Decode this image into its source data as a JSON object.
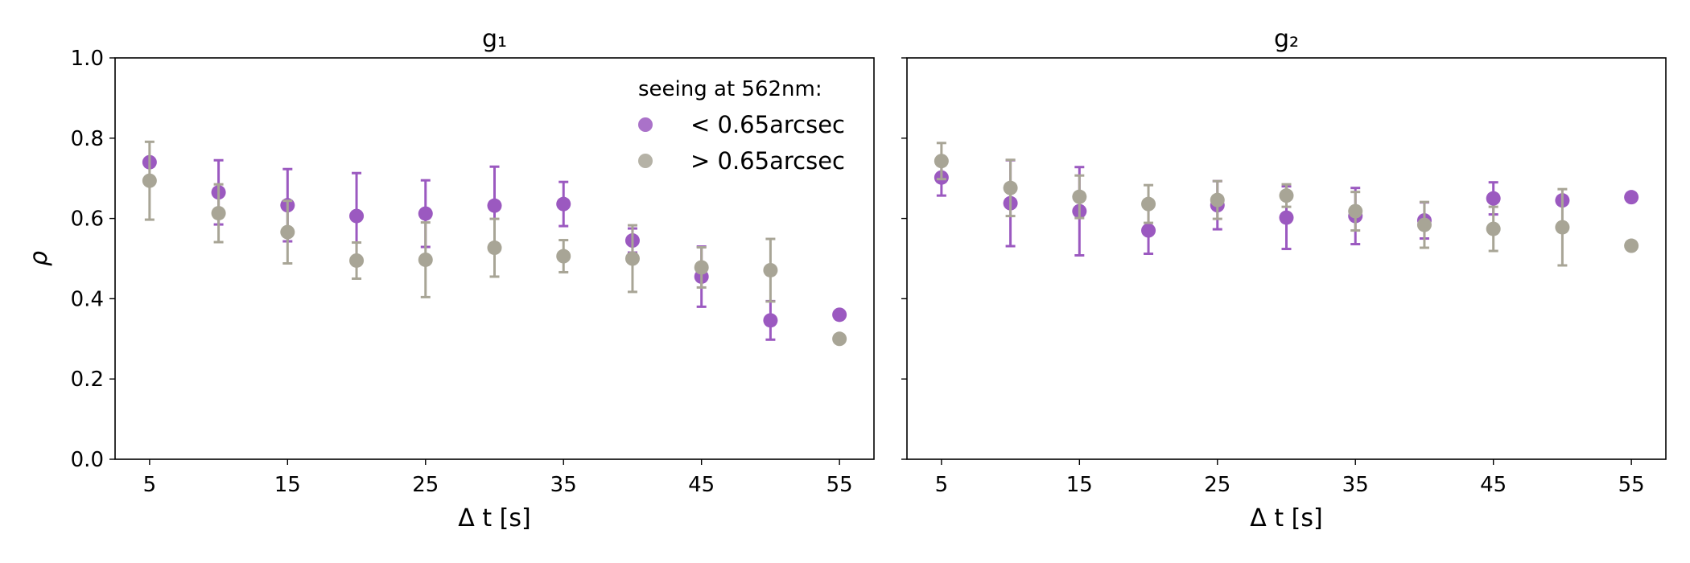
{
  "chart_data": [
    {
      "type": "scatter",
      "title": "g₁",
      "xlabel": "Δ t [s]",
      "ylabel": "ρ",
      "xlim": [
        2.5,
        57.5
      ],
      "ylim": [
        0.0,
        1.0
      ],
      "xticks": [
        5,
        15,
        25,
        35,
        45,
        55
      ],
      "yticks": [
        0.0,
        0.2,
        0.4,
        0.6,
        0.8,
        1.0
      ],
      "ytick_labels": [
        "0.0",
        "0.2",
        "0.4",
        "0.6",
        "0.8",
        "1.0"
      ],
      "grid": false,
      "legend": {
        "title": "seeing at 562nm:",
        "placement": "top-right",
        "entries": [
          "< 0.65arcsec",
          "> 0.65arcsec"
        ]
      },
      "series": [
        {
          "name": "< 0.65arcsec",
          "color": "#9b59c0",
          "x": [
            5,
            10,
            15,
            20,
            25,
            30,
            35,
            40,
            45,
            50,
            55
          ],
          "y": [
            0.74,
            0.665,
            0.633,
            0.606,
            0.612,
            0.632,
            0.636,
            0.545,
            0.455,
            0.346,
            0.36
          ],
          "err": [
            0.0,
            0.08,
            0.09,
            0.107,
            0.083,
            0.097,
            0.055,
            0.03,
            0.075,
            0.048,
            0.0
          ]
        },
        {
          "name": "> 0.65arcsec",
          "color": "#a8a596",
          "x": [
            5,
            10,
            15,
            20,
            25,
            30,
            35,
            40,
            45,
            50,
            55
          ],
          "y": [
            0.694,
            0.613,
            0.566,
            0.495,
            0.497,
            0.527,
            0.506,
            0.5,
            0.478,
            0.471,
            0.3
          ],
          "err": [
            0.097,
            0.072,
            0.078,
            0.045,
            0.093,
            0.072,
            0.04,
            0.083,
            0.05,
            0.078,
            0.0
          ]
        }
      ]
    },
    {
      "type": "scatter",
      "title": "g₂",
      "xlabel": "Δ t [s]",
      "xlim": [
        2.5,
        57.5
      ],
      "ylim": [
        0.0,
        1.0
      ],
      "xticks": [
        5,
        15,
        25,
        35,
        45,
        55
      ],
      "yticks": [
        0.0,
        0.2,
        0.4,
        0.6,
        0.8,
        1.0
      ],
      "grid": false,
      "series": [
        {
          "name": "< 0.65arcsec",
          "color": "#9b59c0",
          "x": [
            5,
            10,
            15,
            20,
            25,
            30,
            35,
            40,
            45,
            50,
            55
          ],
          "y": [
            0.702,
            0.638,
            0.618,
            0.57,
            0.633,
            0.602,
            0.606,
            0.595,
            0.65,
            0.645,
            0.653
          ],
          "err": [
            0.045,
            0.107,
            0.11,
            0.058,
            0.06,
            0.078,
            0.07,
            0.045,
            0.04,
            0.0,
            0.0
          ]
        },
        {
          "name": "> 0.65arcsec",
          "color": "#a8a596",
          "x": [
            5,
            10,
            15,
            20,
            25,
            30,
            35,
            40,
            45,
            50,
            55
          ],
          "y": [
            0.743,
            0.676,
            0.654,
            0.636,
            0.646,
            0.657,
            0.618,
            0.584,
            0.574,
            0.578,
            0.532
          ],
          "err": [
            0.045,
            0.07,
            0.053,
            0.047,
            0.047,
            0.028,
            0.048,
            0.057,
            0.055,
            0.095,
            0.0
          ]
        }
      ]
    }
  ]
}
